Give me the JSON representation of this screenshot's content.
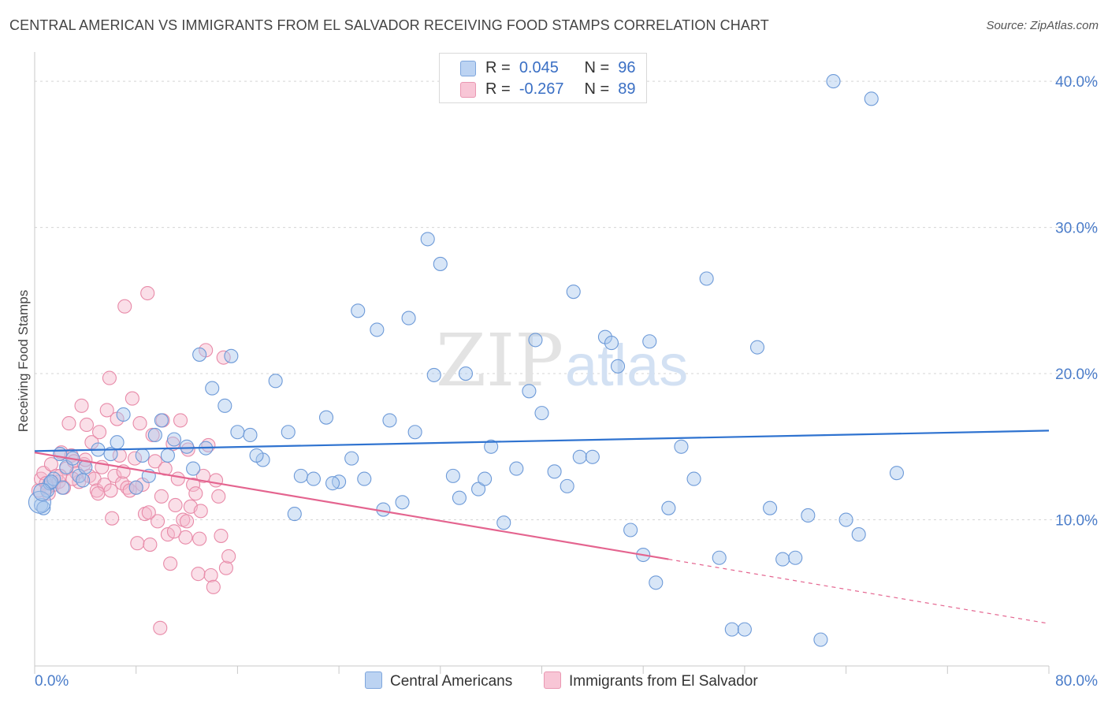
{
  "title": "CENTRAL AMERICAN VS IMMIGRANTS FROM EL SALVADOR RECEIVING FOOD STAMPS CORRELATION CHART",
  "source": "Source: ZipAtlas.com",
  "watermark": {
    "zip": "ZIP",
    "atlas": "atlas"
  },
  "legend": {
    "rows": [
      {
        "r_label": "R =",
        "r_value": "0.045",
        "n_label": "N =",
        "n_value": "96"
      },
      {
        "r_label": "R =",
        "r_value": "-0.267",
        "n_label": "N =",
        "n_value": "89"
      }
    ]
  },
  "colors": {
    "blue_fill": "#a9c7ee",
    "blue_stroke": "#6d9ad8",
    "blue_line": "#2f73d0",
    "pink_fill": "#f4b8cb",
    "pink_stroke": "#e88aa8",
    "pink_line": "#e4648f",
    "grid": "#d5d5d5",
    "axis_text": "#4a7cc9"
  },
  "chart_data": {
    "type": "scatter",
    "xlabel": "",
    "ylabel": "Receiving Food Stamps",
    "xlim": [
      0,
      80
    ],
    "ylim": [
      0,
      42
    ],
    "x_tick_labels": [
      "0.0%",
      "80.0%"
    ],
    "y_ticks": [
      10,
      20,
      30,
      40
    ],
    "y_tick_labels": [
      "10.0%",
      "20.0%",
      "30.0%",
      "40.0%"
    ],
    "grid": "horizontal dashed",
    "legend_position": "top-center",
    "series": [
      {
        "name": "Central Americans",
        "r": 0.045,
        "n": 96,
        "trend": {
          "x": [
            0,
            80
          ],
          "y": [
            14.7,
            16.1
          ]
        },
        "points": [
          [
            0.5,
            11.0
          ],
          [
            0.7,
            10.8
          ],
          [
            1.0,
            12.0
          ],
          [
            1.2,
            12.5
          ],
          [
            1.5,
            12.8
          ],
          [
            2.0,
            14.5
          ],
          [
            2.2,
            12.2
          ],
          [
            2.5,
            13.6
          ],
          [
            3.0,
            14.2
          ],
          [
            3.5,
            13.0
          ],
          [
            4.0,
            13.6
          ],
          [
            5.0,
            14.8
          ],
          [
            6.0,
            14.5
          ],
          [
            7.0,
            17.2
          ],
          [
            8.0,
            12.2
          ],
          [
            8.5,
            14.4
          ],
          [
            9.5,
            15.8
          ],
          [
            10.0,
            16.8
          ],
          [
            11.0,
            15.5
          ],
          [
            12.0,
            15.0
          ],
          [
            12.5,
            13.5
          ],
          [
            13.5,
            14.9
          ],
          [
            14.0,
            19.0
          ],
          [
            15.0,
            17.8
          ],
          [
            16.0,
            16.0
          ],
          [
            17.0,
            15.8
          ],
          [
            18.0,
            14.1
          ],
          [
            19.0,
            19.5
          ],
          [
            20.0,
            16.0
          ],
          [
            21.0,
            13.0
          ],
          [
            22.0,
            12.8
          ],
          [
            23.0,
            17.0
          ],
          [
            24.0,
            12.6
          ],
          [
            25.0,
            14.2
          ],
          [
            26.0,
            12.8
          ],
          [
            27.0,
            23.0
          ],
          [
            28.0,
            16.8
          ],
          [
            29.0,
            11.2
          ],
          [
            30.0,
            16.0
          ],
          [
            31.0,
            29.2
          ],
          [
            32.0,
            27.5
          ],
          [
            33.0,
            13.0
          ],
          [
            34.0,
            20.0
          ],
          [
            35.0,
            12.1
          ],
          [
            36.0,
            15.0
          ],
          [
            37.0,
            9.8
          ],
          [
            38.0,
            13.5
          ],
          [
            39.0,
            18.8
          ],
          [
            40.0,
            17.3
          ],
          [
            41.0,
            13.3
          ],
          [
            42.0,
            12.3
          ],
          [
            43.0,
            14.3
          ],
          [
            44.0,
            14.3
          ],
          [
            45.0,
            22.5
          ],
          [
            46.0,
            20.5
          ],
          [
            47.0,
            9.3
          ],
          [
            48.0,
            7.6
          ],
          [
            49.0,
            5.7
          ],
          [
            50.0,
            10.8
          ],
          [
            51.0,
            15.0
          ],
          [
            52.0,
            12.8
          ],
          [
            53.0,
            26.5
          ],
          [
            54.0,
            7.4
          ],
          [
            55.0,
            2.5
          ],
          [
            56.0,
            2.5
          ],
          [
            57.0,
            21.8
          ],
          [
            58.0,
            10.8
          ],
          [
            59.0,
            7.3
          ],
          [
            60.0,
            7.4
          ],
          [
            61.0,
            10.3
          ],
          [
            62.0,
            1.8
          ],
          [
            63.0,
            40.0
          ],
          [
            64.0,
            10.0
          ],
          [
            65.0,
            9.0
          ],
          [
            66.0,
            38.8
          ],
          [
            68.0,
            13.2
          ],
          [
            1.3,
            12.6
          ],
          [
            3.8,
            12.7
          ],
          [
            6.5,
            15.3
          ],
          [
            9.0,
            13.0
          ],
          [
            10.5,
            14.4
          ],
          [
            13.0,
            21.3
          ],
          [
            15.5,
            21.2
          ],
          [
            17.5,
            14.4
          ],
          [
            20.5,
            10.4
          ],
          [
            23.5,
            12.5
          ],
          [
            25.5,
            24.3
          ],
          [
            27.5,
            10.7
          ],
          [
            29.5,
            23.8
          ],
          [
            31.5,
            19.9
          ],
          [
            33.5,
            11.5
          ],
          [
            35.5,
            12.8
          ],
          [
            39.5,
            22.3
          ],
          [
            42.5,
            25.6
          ],
          [
            45.5,
            22.1
          ],
          [
            48.5,
            22.2
          ]
        ]
      },
      {
        "name": "Immigrants from El Salvador",
        "r": -0.267,
        "n": 89,
        "trend": {
          "x": [
            0,
            50
          ],
          "y": [
            14.6,
            7.3
          ]
        },
        "trend_dashed_extension": {
          "x": [
            50,
            80
          ],
          "y": [
            7.3,
            2.9
          ]
        },
        "points": [
          [
            0.3,
            12.0
          ],
          [
            0.5,
            12.8
          ],
          [
            0.7,
            13.2
          ],
          [
            0.9,
            12.5
          ],
          [
            1.1,
            11.8
          ],
          [
            1.3,
            13.8
          ],
          [
            1.5,
            12.4
          ],
          [
            1.7,
            13.0
          ],
          [
            1.9,
            12.6
          ],
          [
            2.1,
            14.6
          ],
          [
            2.3,
            12.2
          ],
          [
            2.5,
            13.5
          ],
          [
            2.7,
            16.6
          ],
          [
            2.9,
            14.4
          ],
          [
            3.1,
            14.0
          ],
          [
            3.3,
            13.2
          ],
          [
            3.5,
            12.6
          ],
          [
            3.7,
            17.8
          ],
          [
            3.9,
            13.8
          ],
          [
            4.1,
            16.5
          ],
          [
            4.3,
            13.0
          ],
          [
            4.5,
            15.3
          ],
          [
            4.7,
            12.8
          ],
          [
            4.9,
            12.0
          ],
          [
            5.1,
            16.0
          ],
          [
            5.3,
            13.6
          ],
          [
            5.5,
            12.4
          ],
          [
            5.7,
            17.5
          ],
          [
            5.9,
            19.7
          ],
          [
            6.1,
            10.1
          ],
          [
            6.3,
            13.0
          ],
          [
            6.5,
            16.9
          ],
          [
            6.7,
            14.4
          ],
          [
            6.9,
            12.5
          ],
          [
            7.1,
            24.6
          ],
          [
            7.3,
            12.2
          ],
          [
            7.5,
            12.0
          ],
          [
            7.7,
            18.3
          ],
          [
            7.9,
            14.2
          ],
          [
            8.1,
            8.4
          ],
          [
            8.3,
            16.6
          ],
          [
            8.5,
            12.4
          ],
          [
            8.7,
            10.4
          ],
          [
            8.9,
            25.5
          ],
          [
            9.1,
            8.3
          ],
          [
            9.3,
            15.8
          ],
          [
            9.5,
            14.0
          ],
          [
            9.7,
            9.9
          ],
          [
            9.9,
            2.6
          ],
          [
            10.1,
            16.8
          ],
          [
            10.3,
            13.5
          ],
          [
            10.5,
            9.0
          ],
          [
            10.7,
            7.0
          ],
          [
            10.9,
            15.2
          ],
          [
            11.1,
            11.0
          ],
          [
            11.3,
            12.8
          ],
          [
            11.5,
            16.8
          ],
          [
            11.7,
            10.0
          ],
          [
            11.9,
            8.8
          ],
          [
            12.1,
            14.8
          ],
          [
            12.3,
            10.9
          ],
          [
            12.5,
            12.4
          ],
          [
            12.7,
            11.8
          ],
          [
            12.9,
            6.3
          ],
          [
            13.1,
            10.6
          ],
          [
            13.3,
            13.0
          ],
          [
            13.5,
            21.6
          ],
          [
            13.7,
            15.1
          ],
          [
            13.9,
            6.2
          ],
          [
            14.1,
            5.4
          ],
          [
            14.3,
            12.7
          ],
          [
            14.5,
            11.6
          ],
          [
            14.7,
            8.9
          ],
          [
            14.9,
            21.1
          ],
          [
            15.1,
            6.7
          ],
          [
            15.3,
            7.5
          ],
          [
            1.0,
            12.2
          ],
          [
            2.0,
            13.0
          ],
          [
            3.0,
            12.8
          ],
          [
            4.0,
            14.1
          ],
          [
            5.0,
            11.8
          ],
          [
            6.0,
            12.0
          ],
          [
            7.0,
            13.3
          ],
          [
            8.0,
            12.2
          ],
          [
            9.0,
            10.5
          ],
          [
            10.0,
            11.6
          ],
          [
            11.0,
            9.2
          ],
          [
            12.0,
            9.9
          ],
          [
            13.0,
            8.7
          ]
        ]
      }
    ]
  }
}
